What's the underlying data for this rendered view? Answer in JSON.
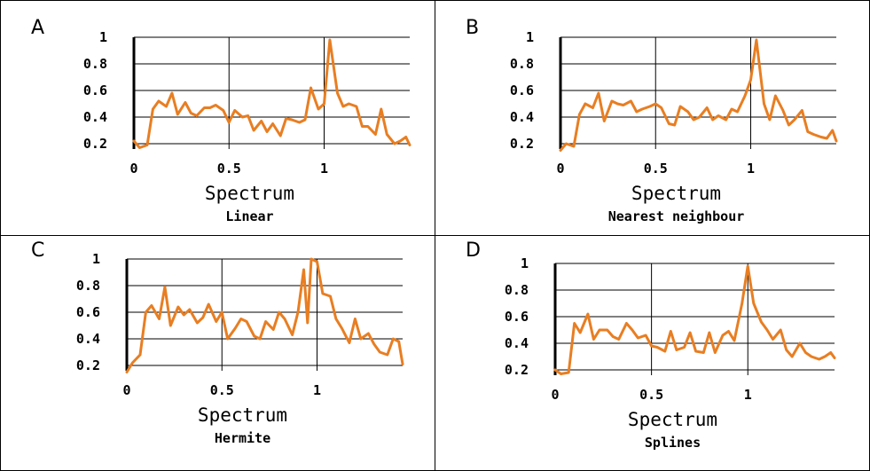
{
  "colors": {
    "line": "#e87e22",
    "grid": "#000000",
    "border": "#000000"
  },
  "chart_data": [
    {
      "type": "line",
      "panel": "A",
      "xlabel": "Spectrum",
      "subtitle": "Linear",
      "xticks": [
        {
          "v": 0,
          "label": "0"
        },
        {
          "v": 0.5,
          "label": "0.5"
        },
        {
          "v": 1,
          "label": "1"
        }
      ],
      "yticks": [
        {
          "v": 0.2,
          "label": "0.2"
        },
        {
          "v": 0.4,
          "label": "0.4"
        },
        {
          "v": 0.6,
          "label": "0.6"
        },
        {
          "v": 0.8,
          "label": "0.8"
        },
        {
          "v": 1,
          "label": "1"
        }
      ],
      "xlim": [
        0,
        1.45
      ],
      "ylim": [
        0.16,
        1.0
      ],
      "x": [
        0,
        0.03,
        0.07,
        0.1,
        0.13,
        0.17,
        0.2,
        0.23,
        0.27,
        0.3,
        0.33,
        0.37,
        0.4,
        0.43,
        0.47,
        0.5,
        0.53,
        0.57,
        0.6,
        0.63,
        0.67,
        0.7,
        0.73,
        0.77,
        0.8,
        0.83,
        0.87,
        0.9,
        0.93,
        0.97,
        1.0,
        1.03,
        1.07,
        1.1,
        1.13,
        1.17,
        1.2,
        1.23,
        1.27,
        1.3,
        1.33,
        1.37,
        1.4,
        1.43,
        1.45
      ],
      "y": [
        0.22,
        0.17,
        0.19,
        0.46,
        0.52,
        0.48,
        0.58,
        0.42,
        0.51,
        0.43,
        0.41,
        0.47,
        0.47,
        0.49,
        0.45,
        0.36,
        0.45,
        0.4,
        0.41,
        0.3,
        0.37,
        0.29,
        0.35,
        0.26,
        0.39,
        0.38,
        0.36,
        0.38,
        0.62,
        0.46,
        0.5,
        0.98,
        0.58,
        0.48,
        0.5,
        0.48,
        0.33,
        0.33,
        0.27,
        0.46,
        0.27,
        0.2,
        0.22,
        0.25,
        0.19
      ]
    },
    {
      "type": "line",
      "panel": "B",
      "xlabel": "Spectrum",
      "subtitle": "Nearest neighbour",
      "xticks": [
        {
          "v": 0,
          "label": "0"
        },
        {
          "v": 0.5,
          "label": "0.5"
        },
        {
          "v": 1,
          "label": "1"
        }
      ],
      "yticks": [
        {
          "v": 0.2,
          "label": "0.2"
        },
        {
          "v": 0.4,
          "label": "0.4"
        },
        {
          "v": 0.6,
          "label": "0.6"
        },
        {
          "v": 0.8,
          "label": "0.8"
        },
        {
          "v": 1,
          "label": "1"
        }
      ],
      "xlim": [
        0,
        1.45
      ],
      "ylim": [
        0.16,
        1.0
      ],
      "x": [
        0,
        0.03,
        0.07,
        0.1,
        0.13,
        0.17,
        0.2,
        0.23,
        0.27,
        0.3,
        0.33,
        0.37,
        0.4,
        0.43,
        0.47,
        0.5,
        0.53,
        0.57,
        0.6,
        0.63,
        0.67,
        0.7,
        0.73,
        0.77,
        0.8,
        0.83,
        0.87,
        0.9,
        0.93,
        0.97,
        1.0,
        1.03,
        1.07,
        1.1,
        1.13,
        1.17,
        1.2,
        1.23,
        1.27,
        1.3,
        1.33,
        1.37,
        1.4,
        1.43,
        1.45
      ],
      "y": [
        0.15,
        0.2,
        0.18,
        0.42,
        0.5,
        0.47,
        0.58,
        0.37,
        0.52,
        0.5,
        0.49,
        0.52,
        0.44,
        0.46,
        0.48,
        0.5,
        0.47,
        0.35,
        0.34,
        0.48,
        0.44,
        0.38,
        0.4,
        0.47,
        0.38,
        0.41,
        0.38,
        0.46,
        0.44,
        0.56,
        0.68,
        0.98,
        0.5,
        0.38,
        0.56,
        0.45,
        0.34,
        0.38,
        0.45,
        0.29,
        0.27,
        0.25,
        0.24,
        0.3,
        0.22
      ]
    },
    {
      "type": "line",
      "panel": "C",
      "xlabel": "Spectrum",
      "subtitle": "Hermite",
      "xticks": [
        {
          "v": 0,
          "label": "0"
        },
        {
          "v": 0.5,
          "label": "0.5"
        },
        {
          "v": 1,
          "label": "1"
        }
      ],
      "yticks": [
        {
          "v": 0.2,
          "label": "0.2"
        },
        {
          "v": 0.4,
          "label": "0.4"
        },
        {
          "v": 0.6,
          "label": "0.6"
        },
        {
          "v": 0.8,
          "label": "0.8"
        },
        {
          "v": 1,
          "label": "1"
        }
      ],
      "xlim": [
        0,
        1.45
      ],
      "ylim": [
        0.16,
        1.0
      ],
      "x": [
        0,
        0.03,
        0.07,
        0.1,
        0.13,
        0.17,
        0.2,
        0.23,
        0.27,
        0.3,
        0.33,
        0.37,
        0.4,
        0.43,
        0.47,
        0.5,
        0.53,
        0.57,
        0.6,
        0.63,
        0.67,
        0.7,
        0.73,
        0.77,
        0.8,
        0.83,
        0.87,
        0.9,
        0.93,
        0.95,
        0.97,
        1.0,
        1.03,
        1.07,
        1.1,
        1.13,
        1.17,
        1.2,
        1.23,
        1.27,
        1.3,
        1.33,
        1.37,
        1.4,
        1.43,
        1.45
      ],
      "y": [
        0.15,
        0.22,
        0.28,
        0.6,
        0.65,
        0.55,
        0.79,
        0.5,
        0.64,
        0.58,
        0.62,
        0.52,
        0.56,
        0.66,
        0.53,
        0.6,
        0.4,
        0.48,
        0.55,
        0.53,
        0.42,
        0.4,
        0.53,
        0.47,
        0.6,
        0.55,
        0.43,
        0.6,
        0.92,
        0.52,
        1.0,
        0.98,
        0.74,
        0.72,
        0.55,
        0.48,
        0.37,
        0.55,
        0.4,
        0.44,
        0.36,
        0.3,
        0.28,
        0.4,
        0.38,
        0.21
      ]
    },
    {
      "type": "line",
      "panel": "D",
      "xlabel": "Spectrum",
      "subtitle": "Splines",
      "xticks": [
        {
          "v": 0,
          "label": "0"
        },
        {
          "v": 0.5,
          "label": "0.5"
        },
        {
          "v": 1,
          "label": "1"
        }
      ],
      "yticks": [
        {
          "v": 0.2,
          "label": "0.2"
        },
        {
          "v": 0.4,
          "label": "0.4"
        },
        {
          "v": 0.6,
          "label": "0.6"
        },
        {
          "v": 0.8,
          "label": "0.8"
        },
        {
          "v": 1,
          "label": "1"
        }
      ],
      "xlim": [
        0,
        1.45
      ],
      "ylim": [
        0.16,
        1.0
      ],
      "x": [
        0,
        0.03,
        0.07,
        0.1,
        0.13,
        0.17,
        0.2,
        0.23,
        0.27,
        0.3,
        0.33,
        0.37,
        0.4,
        0.43,
        0.47,
        0.5,
        0.53,
        0.57,
        0.6,
        0.63,
        0.67,
        0.7,
        0.73,
        0.77,
        0.8,
        0.83,
        0.87,
        0.9,
        0.93,
        0.97,
        1.0,
        1.03,
        1.07,
        1.1,
        1.13,
        1.17,
        1.2,
        1.23,
        1.27,
        1.3,
        1.33,
        1.37,
        1.4,
        1.43,
        1.45
      ],
      "y": [
        0.2,
        0.17,
        0.18,
        0.55,
        0.48,
        0.62,
        0.43,
        0.5,
        0.5,
        0.45,
        0.43,
        0.55,
        0.5,
        0.44,
        0.46,
        0.38,
        0.37,
        0.34,
        0.49,
        0.35,
        0.37,
        0.48,
        0.34,
        0.33,
        0.48,
        0.33,
        0.46,
        0.49,
        0.42,
        0.7,
        0.98,
        0.7,
        0.56,
        0.5,
        0.43,
        0.5,
        0.35,
        0.3,
        0.4,
        0.33,
        0.3,
        0.28,
        0.3,
        0.33,
        0.29
      ]
    }
  ]
}
